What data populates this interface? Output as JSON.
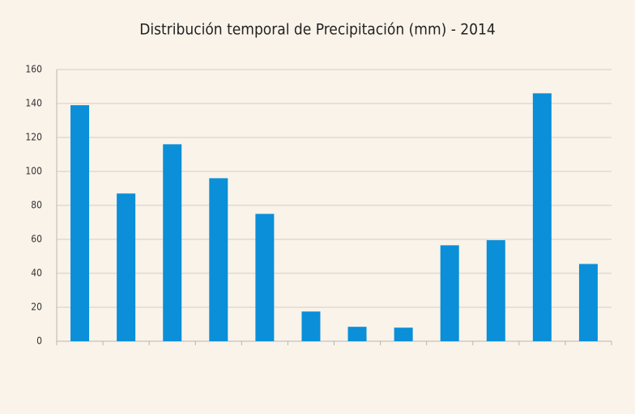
{
  "chart_data": {
    "type": "bar",
    "title": "Distribución temporal de Precipitación (mm) - 2014",
    "categories": [
      null,
      null,
      null,
      null,
      null,
      null,
      null,
      null,
      null,
      null,
      null,
      null
    ],
    "values": [
      139,
      87,
      116,
      96,
      75,
      17.5,
      8.5,
      8,
      56.5,
      59.5,
      146,
      45.5
    ],
    "color": "#0a8fd8",
    "ylim": [
      0,
      160
    ],
    "yticks": [
      0,
      20,
      40,
      60,
      80,
      100,
      120,
      140,
      160
    ],
    "grid": true
  }
}
